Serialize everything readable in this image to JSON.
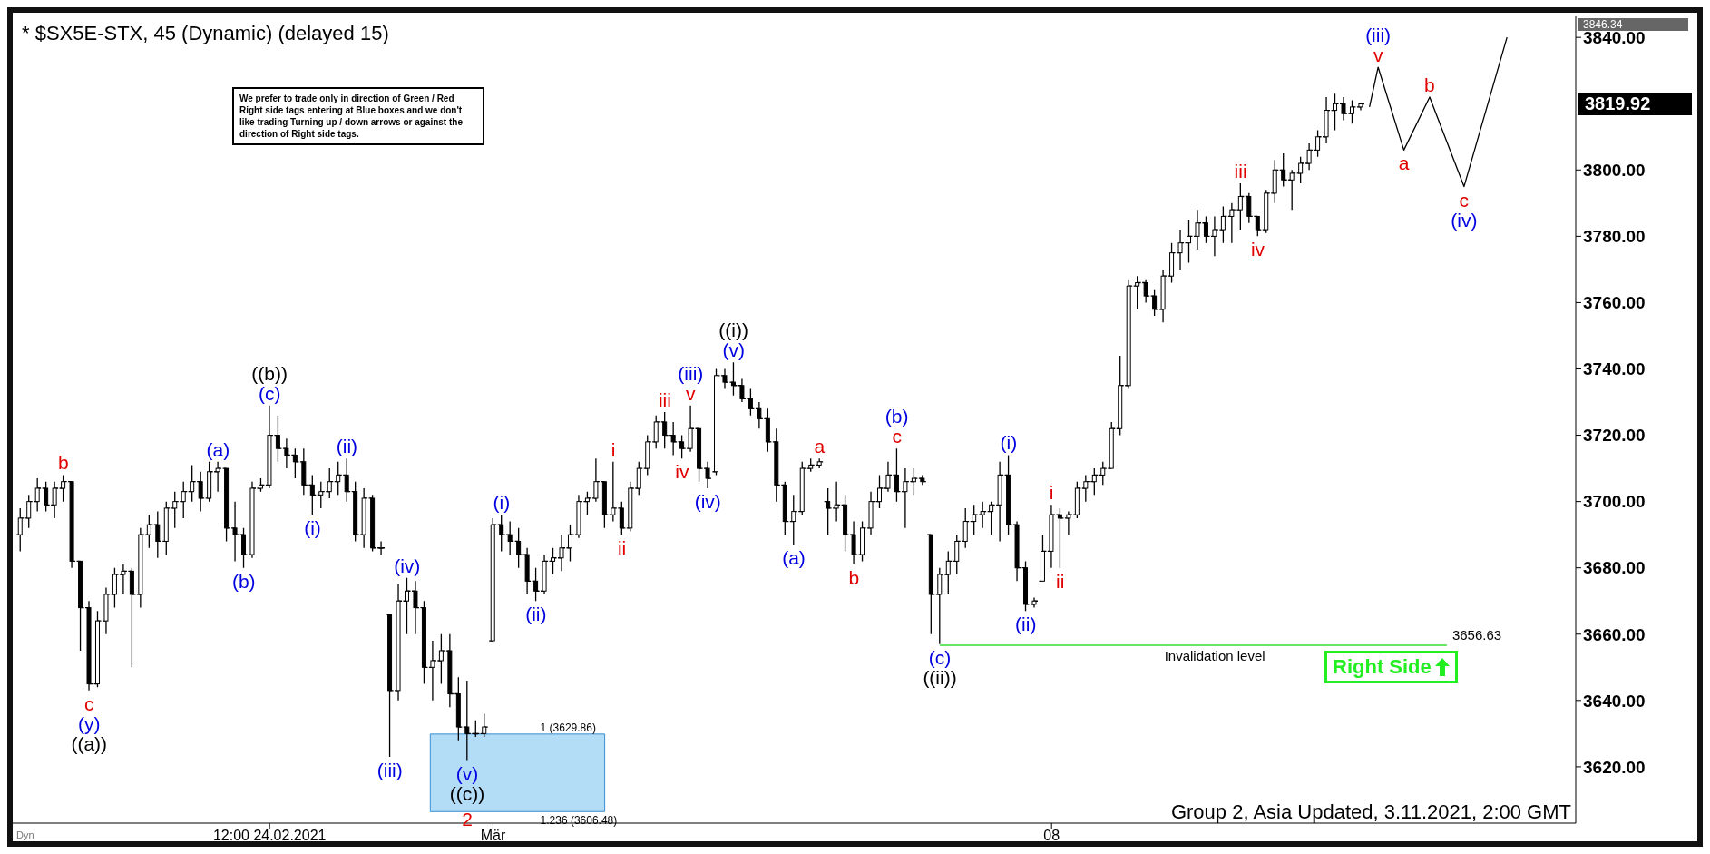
{
  "chart_data": {
    "type": "candlestick",
    "title": "* $SX5E-STX, 45 (Dynamic) (delayed 15)",
    "color": "#000000",
    "categories": [
      null,
      null,
      null,
      null,
      null,
      null,
      null,
      null,
      null,
      null,
      null,
      null,
      null,
      null,
      null,
      null,
      null,
      null,
      null,
      null,
      null,
      null,
      null,
      null,
      null,
      null,
      null,
      null,
      null,
      "12:00 24.02.2021",
      null,
      null,
      null,
      null,
      null,
      null,
      null,
      null,
      null,
      null,
      null,
      null,
      null,
      null,
      null,
      null,
      null,
      null,
      null,
      null,
      null,
      null,
      null,
      null,
      null,
      "Mär",
      null,
      null,
      null,
      null,
      null,
      null,
      null,
      null,
      null,
      null,
      null,
      null,
      null,
      null,
      null,
      null,
      null,
      null,
      null,
      null,
      null,
      null,
      null,
      null,
      null,
      null,
      null,
      null,
      null,
      null,
      null,
      null,
      null,
      null,
      null,
      null,
      null,
      null,
      null,
      null,
      null,
      null,
      null,
      null,
      null,
      null,
      null,
      null,
      null,
      null,
      null,
      null,
      null,
      null,
      null,
      null,
      null,
      null,
      null,
      null,
      null,
      null,
      null,
      null,
      "08",
      null,
      null,
      null,
      null,
      null,
      null,
      null,
      null,
      null,
      null,
      null,
      null,
      null,
      null,
      null,
      null,
      null,
      null,
      null,
      null,
      null,
      null,
      null,
      null,
      null,
      null,
      null,
      null,
      null,
      null,
      null,
      null,
      null,
      null,
      null,
      null,
      null,
      null,
      null,
      null,
      null,
      null,
      null,
      null,
      null,
      null,
      null,
      null,
      null,
      null,
      null,
      null,
      null
    ],
    "ohlc": [
      [
        3690,
        3698,
        3685,
        3695
      ],
      [
        3695,
        3702,
        3692,
        3700
      ],
      [
        3700,
        3707,
        3697,
        3704
      ],
      [
        3704,
        3706,
        3697,
        3699
      ],
      [
        3699,
        3706,
        3695,
        3704
      ],
      [
        3704,
        3708,
        3700,
        3706
      ],
      [
        3706,
        3706,
        3680,
        3682
      ],
      [
        3682,
        3682,
        3655,
        3668
      ],
      [
        3668,
        3670,
        3643,
        3645
      ],
      [
        3645,
        3667,
        3644,
        3664
      ],
      [
        3664,
        3674,
        3660,
        3672
      ],
      [
        3672,
        3680,
        3668,
        3678
      ],
      [
        3678,
        3681,
        3672,
        3679
      ],
      [
        3679,
        3680,
        3650,
        3672
      ],
      [
        3672,
        3692,
        3668,
        3690
      ],
      [
        3690,
        3696,
        3686,
        3693
      ],
      [
        3693,
        3697,
        3683,
        3688
      ],
      [
        3688,
        3700,
        3684,
        3698
      ],
      [
        3698,
        3703,
        3692,
        3700
      ],
      [
        3700,
        3706,
        3695,
        3703
      ],
      [
        3703,
        3711,
        3700,
        3706
      ],
      [
        3706,
        3709,
        3697,
        3701
      ],
      [
        3701,
        3712,
        3700,
        3709
      ],
      [
        3709,
        3712,
        3703,
        3710
      ],
      [
        3710,
        3710,
        3688,
        3692
      ],
      [
        3692,
        3700,
        3682,
        3690
      ],
      [
        3690,
        3692,
        3680,
        3684
      ],
      [
        3684,
        3706,
        3683,
        3704
      ],
      [
        3704,
        3707,
        3703,
        3705
      ],
      [
        3705,
        3729,
        3704,
        3720
      ],
      [
        3720,
        3726,
        3712,
        3716
      ],
      [
        3716,
        3719,
        3710,
        3714
      ],
      [
        3714,
        3716,
        3707,
        3712
      ],
      [
        3712,
        3716,
        3702,
        3705
      ],
      [
        3705,
        3708,
        3696,
        3702
      ],
      [
        3702,
        3706,
        3698,
        3703
      ],
      [
        3703,
        3710,
        3701,
        3706
      ],
      [
        3706,
        3712,
        3702,
        3708
      ],
      [
        3708,
        3713,
        3700,
        3703
      ],
      [
        3703,
        3706,
        3688,
        3690
      ],
      [
        3690,
        3704,
        3686,
        3701
      ],
      [
        3701,
        3702,
        3685,
        3686
      ],
      [
        3686,
        3688,
        3684,
        3686
      ],
      [
        3666,
        3666,
        3623,
        3643
      ],
      [
        3643,
        3675,
        3640,
        3670
      ],
      [
        3670,
        3677,
        3660,
        3673
      ],
      [
        3673,
        3676,
        3660,
        3668
      ],
      [
        3668,
        3670,
        3645,
        3650
      ],
      [
        3650,
        3658,
        3640,
        3652
      ],
      [
        3652,
        3660,
        3645,
        3655
      ],
      [
        3655,
        3660,
        3638,
        3642
      ],
      [
        3642,
        3647,
        3628,
        3632
      ],
      [
        3632,
        3646,
        3622,
        3630
      ],
      [
        3630,
        3634,
        3629,
        3630
      ],
      [
        3630,
        3636,
        3629,
        3632
      ],
      [
        3658,
        3695,
        3658,
        3693
      ],
      [
        3693,
        3696,
        3685,
        3690
      ],
      [
        3690,
        3694,
        3684,
        3688
      ],
      [
        3688,
        3692,
        3680,
        3684
      ],
      [
        3684,
        3686,
        3672,
        3676
      ],
      [
        3676,
        3680,
        3670,
        3673
      ],
      [
        3673,
        3684,
        3672,
        3682
      ],
      [
        3682,
        3686,
        3678,
        3683
      ],
      [
        3683,
        3690,
        3679,
        3686
      ],
      [
        3686,
        3693,
        3682,
        3690
      ],
      [
        3690,
        3702,
        3689,
        3700
      ],
      [
        3700,
        3703,
        3696,
        3701
      ],
      [
        3701,
        3713,
        3700,
        3706
      ],
      [
        3706,
        3706,
        3692,
        3696
      ],
      [
        3696,
        3712,
        3694,
        3698
      ],
      [
        3698,
        3700,
        3690,
        3692
      ],
      [
        3692,
        3706,
        3691,
        3704
      ],
      [
        3704,
        3712,
        3702,
        3710
      ],
      [
        3710,
        3720,
        3708,
        3718
      ],
      [
        3718,
        3726,
        3716,
        3724
      ],
      [
        3724,
        3727,
        3716,
        3720
      ],
      [
        3720,
        3724,
        3714,
        3718
      ],
      [
        3718,
        3720,
        3713,
        3716
      ],
      [
        3716,
        3729,
        3715,
        3722
      ],
      [
        3722,
        3722,
        3706,
        3710
      ],
      [
        3710,
        3712,
        3704,
        3707
      ],
      [
        3709,
        3740,
        3708,
        3738
      ],
      [
        3738,
        3740,
        3734,
        3736
      ],
      [
        3736,
        3742,
        3732,
        3735
      ],
      [
        3735,
        3737,
        3730,
        3731
      ],
      [
        3731,
        3734,
        3726,
        3728
      ],
      [
        3728,
        3730,
        3722,
        3725
      ],
      [
        3725,
        3728,
        3715,
        3718
      ],
      [
        3718,
        3722,
        3700,
        3705
      ],
      [
        3705,
        3706,
        3690,
        3694
      ],
      [
        3694,
        3702,
        3687,
        3697
      ],
      [
        3697,
        3712,
        3696,
        3710
      ],
      [
        3710,
        3713,
        3709,
        3711
      ],
      [
        3711,
        3713,
        3710,
        3712
      ],
      [
        3700,
        3704,
        3690,
        3698
      ],
      [
        3698,
        3706,
        3694,
        3699
      ],
      [
        3699,
        3702,
        3685,
        3690
      ],
      [
        3690,
        3694,
        3681,
        3684
      ],
      [
        3684,
        3694,
        3682,
        3692
      ],
      [
        3692,
        3703,
        3690,
        3700
      ],
      [
        3700,
        3708,
        3698,
        3704
      ],
      [
        3704,
        3712,
        3703,
        3708
      ],
      [
        3708,
        3716,
        3700,
        3703
      ],
      [
        3703,
        3710,
        3692,
        3706
      ],
      [
        3706,
        3710,
        3702,
        3707
      ],
      [
        3707,
        3708,
        3705,
        3706
      ],
      [
        3690,
        3690,
        3660,
        3672
      ],
      [
        3672,
        3680,
        3657,
        3678
      ],
      [
        3678,
        3685,
        3672,
        3682
      ],
      [
        3682,
        3690,
        3678,
        3688
      ],
      [
        3688,
        3698,
        3686,
        3694
      ],
      [
        3694,
        3699,
        3690,
        3696
      ],
      [
        3696,
        3700,
        3692,
        3697
      ],
      [
        3697,
        3700,
        3690,
        3699
      ],
      [
        3699,
        3712,
        3688,
        3708
      ],
      [
        3708,
        3714,
        3690,
        3693
      ],
      [
        3693,
        3694,
        3676,
        3680
      ],
      [
        3680,
        3682,
        3667,
        3669
      ],
      [
        3669,
        3671,
        3668,
        3670
      ],
      [
        3676,
        3690,
        3676,
        3685
      ],
      [
        3685,
        3699,
        3680,
        3696
      ],
      [
        3696,
        3698,
        3680,
        3695
      ],
      [
        3695,
        3697,
        3690,
        3696
      ],
      [
        3696,
        3706,
        3695,
        3704
      ],
      [
        3704,
        3708,
        3700,
        3706
      ],
      [
        3706,
        3710,
        3702,
        3708
      ],
      [
        3708,
        3712,
        3705,
        3710
      ],
      [
        3710,
        3724,
        3710,
        3722
      ],
      [
        3722,
        3744,
        3720,
        3735
      ],
      [
        3735,
        3767,
        3734,
        3765
      ],
      [
        3765,
        3768,
        3758,
        3766
      ],
      [
        3766,
        3767,
        3760,
        3762
      ],
      [
        3762,
        3764,
        3756,
        3758
      ],
      [
        3758,
        3770,
        3754,
        3768
      ],
      [
        3768,
        3778,
        3766,
        3775
      ],
      [
        3775,
        3782,
        3770,
        3778
      ],
      [
        3778,
        3785,
        3772,
        3780
      ],
      [
        3780,
        3788,
        3776,
        3784
      ],
      [
        3784,
        3786,
        3778,
        3780
      ],
      [
        3780,
        3786,
        3774,
        3782
      ],
      [
        3782,
        3789,
        3778,
        3786
      ],
      [
        3786,
        3790,
        3778,
        3788
      ],
      [
        3788,
        3796,
        3782,
        3792
      ],
      [
        3792,
        3793,
        3784,
        3786
      ],
      [
        3786,
        3786,
        3780,
        3782
      ],
      [
        3782,
        3794,
        3781,
        3793
      ],
      [
        3793,
        3803,
        3790,
        3800
      ],
      [
        3800,
        3805,
        3795,
        3797
      ],
      [
        3797,
        3800,
        3788,
        3799
      ],
      [
        3799,
        3804,
        3796,
        3802
      ],
      [
        3802,
        3808,
        3800,
        3806
      ],
      [
        3806,
        3812,
        3804,
        3810
      ],
      [
        3810,
        3822,
        3808,
        3818
      ],
      [
        3818,
        3823,
        3812,
        3820
      ],
      [
        3820,
        3822,
        3815,
        3817
      ],
      [
        3817,
        3821,
        3814,
        3819
      ],
      [
        3819,
        3820,
        3818,
        3819.92
      ],
      null,
      null,
      null,
      null,
      null,
      null,
      null,
      null,
      null,
      null,
      null,
      null,
      null,
      null,
      null,
      null,
      null
    ],
    "series": [
      {
        "type": "line",
        "color": "#000000",
        "values": [
          null,
          null,
          null,
          null,
          null,
          null,
          null,
          null,
          null,
          null,
          null,
          null,
          null,
          null,
          null,
          null,
          null,
          null,
          null,
          null,
          null,
          null,
          null,
          null,
          null,
          null,
          null,
          null,
          null,
          null,
          null,
          null,
          null,
          null,
          null,
          null,
          null,
          null,
          null,
          null,
          null,
          null,
          null,
          null,
          null,
          null,
          null,
          null,
          null,
          null,
          null,
          null,
          null,
          null,
          null,
          null,
          null,
          null,
          null,
          null,
          null,
          null,
          null,
          null,
          null,
          null,
          null,
          null,
          null,
          null,
          null,
          null,
          null,
          null,
          null,
          null,
          null,
          null,
          null,
          null,
          null,
          null,
          null,
          null,
          null,
          null,
          null,
          null,
          null,
          null,
          null,
          null,
          null,
          null,
          null,
          null,
          null,
          null,
          null,
          null,
          null,
          null,
          null,
          null,
          null,
          null,
          null,
          null,
          null,
          null,
          null,
          null,
          null,
          null,
          null,
          null,
          null,
          null,
          null,
          null,
          null,
          null,
          null,
          null,
          null,
          null,
          null,
          null,
          null,
          null,
          null,
          null,
          null,
          null,
          null,
          null,
          null,
          null,
          null,
          null,
          null,
          null,
          null,
          null,
          null,
          null,
          null,
          null,
          null,
          null,
          null,
          null,
          null,
          null,
          null,
          null,
          null,
          3819,
          3831,
          null,
          null,
          3806,
          null,
          null,
          3822,
          null,
          null,
          null,
          3795,
          null,
          null,
          null,
          null,
          3840
        ]
      }
    ],
    "ylim": [
      3603,
      3846.34
    ],
    "yticks": [
      {
        "value": 3620,
        "label": "3620.00"
      },
      {
        "value": 3640,
        "label": "3640.00"
      },
      {
        "value": 3660,
        "label": "3660.00"
      },
      {
        "value": 3680,
        "label": "3680.00"
      },
      {
        "value": 3700,
        "label": "3700.00"
      },
      {
        "value": 3720,
        "label": "3720.00"
      },
      {
        "value": 3740,
        "label": "3740.00"
      },
      {
        "value": 3760,
        "label": "3760.00"
      },
      {
        "value": 3780,
        "label": "3780.00"
      },
      {
        "value": 3800,
        "label": "3800.00"
      },
      {
        "value": 3840,
        "label": "3840.00"
      }
    ],
    "ref_lines": [
      {
        "axis": "y",
        "value": 3656.63,
        "label": "3656.63",
        "color": "#33dd33"
      }
    ],
    "bands": [
      {
        "axis": "y",
        "from": 3606.48,
        "to": 3629.86,
        "color": "#b3dcf7"
      }
    ],
    "annotations": [
      {
        "text": "b",
        "y": 3708
      },
      {
        "text": "c",
        "y": 3643
      },
      {
        "text": "(y)",
        "y": 3643
      },
      {
        "text": "((a))",
        "y": 3643
      },
      {
        "text": "(a)",
        "y": 3712
      },
      {
        "text": "(b)",
        "y": 3680
      },
      {
        "text": "(c)",
        "y": 3729
      },
      {
        "text": "((b))",
        "y": 3729
      },
      {
        "text": "(i)",
        "y": 3696
      },
      {
        "text": "(ii)",
        "y": 3713
      },
      {
        "text": "(iii)",
        "y": 3623
      },
      {
        "text": "(iv)",
        "y": 3677
      },
      {
        "text": "(v)",
        "y": 3622
      },
      {
        "text": "((c))",
        "y": 3622
      },
      {
        "text": "2",
        "y": 3622
      },
      {
        "text": "(i)",
        "y": 3696
      },
      {
        "text": "(ii)",
        "y": 3670
      },
      {
        "text": "i",
        "y": 3712
      },
      {
        "text": "ii",
        "y": 3690
      },
      {
        "text": "iii",
        "y": 3727
      },
      {
        "text": "iv",
        "y": 3713
      },
      {
        "text": "v",
        "y": 3729
      },
      {
        "text": "(iii)",
        "y": 3729
      },
      {
        "text": "(iv)",
        "y": 3704
      },
      {
        "text": "(v)",
        "y": 3742
      },
      {
        "text": "((i))",
        "y": 3742
      },
      {
        "text": "(a)",
        "y": 3687
      },
      {
        "text": "a",
        "y": 3713
      },
      {
        "text": "b",
        "y": 3681
      },
      {
        "text": "c",
        "y": 3716
      },
      {
        "text": "(b)",
        "y": 3716
      },
      {
        "text": "(c)",
        "y": 3657
      },
      {
        "text": "((ii))",
        "y": 3657
      },
      {
        "text": "(i)",
        "y": 3714
      },
      {
        "text": "(ii)",
        "y": 3667
      },
      {
        "text": "i",
        "y": 3699
      },
      {
        "text": "ii",
        "y": 3680
      },
      {
        "text": "iii",
        "y": 3796
      },
      {
        "text": "iv",
        "y": 3780
      },
      {
        "text": "v",
        "y": 3831
      },
      {
        "text": "(iii)",
        "y": 3831
      },
      {
        "text": "a",
        "y": 3806
      },
      {
        "text": "b",
        "y": 3822
      },
      {
        "text": "c",
        "y": 3795
      },
      {
        "text": "(iv)",
        "y": 3795
      },
      "We prefer to trade only in direction of Green / Red Right side tags entering at Blue boxes and we don't like trading Turning up / down arrows or against the direction of Right side tags.",
      "Group 2, Asia Updated, 3.11.2021, 2:00 GMT",
      "Dyn",
      "Invalidation level",
      "Right Side",
      {
        "text": "1 (3629.86)",
        "y": 3629.86
      },
      {
        "text": "1.236 (3606.48)",
        "y": 3606.48
      },
      "3819.92",
      "3846.34"
    ]
  }
}
